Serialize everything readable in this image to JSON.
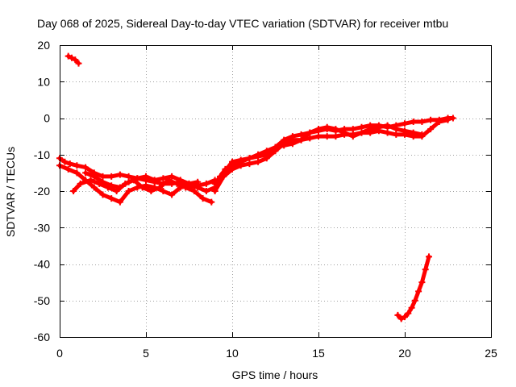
{
  "chart_data": {
    "type": "scatter",
    "title": "Day 068 of 2025, Sidereal Day-to-day VTEC variation (SDTVAR) for receiver mtbu",
    "xlabel": "GPS time / hours",
    "ylabel": "SDTVAR / TECUs",
    "xlim": [
      0,
      25
    ],
    "ylim": [
      -60,
      20
    ],
    "xticks": [
      0,
      5,
      10,
      15,
      20,
      25
    ],
    "yticks": [
      20,
      10,
      0,
      -10,
      -20,
      -30,
      -40,
      -50,
      -60
    ],
    "grid": true,
    "series_color": "#ff0000",
    "series": [
      {
        "name": "early-fragment",
        "x": [
          0.5,
          0.7,
          0.9,
          1.1
        ],
        "y": [
          17,
          16.5,
          16,
          15
        ]
      },
      {
        "name": "band-1",
        "x": [
          0,
          0.3,
          0.6,
          1,
          1.5,
          2,
          2.5,
          3,
          3.5,
          4,
          4.5,
          5,
          5.5,
          6,
          6.5,
          7,
          7.5,
          8,
          8.5,
          9
        ],
        "y": [
          -11,
          -12,
          -12.5,
          -13,
          -13.5,
          -15,
          -16,
          -16,
          -15.5,
          -16,
          -16.5,
          -17,
          -17.5,
          -18,
          -18,
          -17.5,
          -18,
          -18.5,
          -18,
          -17
        ]
      },
      {
        "name": "band-2",
        "x": [
          0,
          0.5,
          1,
          1.5,
          2,
          2.5,
          3,
          3.5,
          4,
          4.5,
          5,
          5.5,
          6,
          6.5,
          7,
          7.5,
          8,
          8.5,
          9
        ],
        "y": [
          -13,
          -14,
          -15,
          -17,
          -19,
          -21,
          -22,
          -23,
          -20,
          -19,
          -18.5,
          -19,
          -20,
          -21,
          -19,
          -18.5,
          -19,
          -20,
          -19
        ]
      },
      {
        "name": "band-3",
        "x": [
          0.8,
          1.2,
          1.8,
          2.3,
          2.8,
          3.3,
          3.8,
          4.3,
          4.8,
          5.3,
          5.8,
          6.3,
          6.8,
          7.3,
          7.8,
          8.3,
          8.8
        ],
        "y": [
          -20,
          -18,
          -17,
          -18,
          -19,
          -20,
          -18,
          -17,
          -19,
          -20,
          -19,
          -17,
          -18,
          -19,
          -20,
          -22,
          -23
        ]
      },
      {
        "name": "band-4",
        "x": [
          1.5,
          2,
          2.5,
          3,
          3.5,
          4,
          4.5,
          5,
          5.5,
          6,
          6.5,
          7,
          7.5,
          8
        ],
        "y": [
          -15,
          -16,
          -17.5,
          -18.5,
          -19,
          -17.5,
          -16.5,
          -16,
          -17,
          -16.5,
          -16,
          -17,
          -18,
          -17.5
        ]
      },
      {
        "name": "rise-1",
        "x": [
          9,
          9.3,
          9.6,
          10,
          10.5,
          11,
          11.5,
          12,
          12.5,
          13,
          13.5,
          14,
          14.5,
          15,
          15.5,
          16,
          16.5,
          17,
          17.5,
          18,
          18.5,
          19,
          19.5,
          20,
          20.5,
          21,
          21.5,
          22,
          22.5,
          22.8
        ],
        "y": [
          -18,
          -16,
          -14,
          -13,
          -12,
          -11,
          -10.5,
          -10,
          -8,
          -6,
          -5,
          -4.5,
          -4,
          -3.5,
          -3,
          -3.5,
          -3,
          -3,
          -2.5,
          -2,
          -2,
          -2.5,
          -2,
          -1.5,
          -1,
          -1,
          -0.5,
          -0.5,
          0,
          0
        ]
      },
      {
        "name": "rise-2",
        "x": [
          9,
          9.5,
          10,
          10.5,
          11,
          11.5,
          12,
          12.5,
          13,
          13.5,
          14,
          14.5,
          15,
          15.5,
          16,
          16.5,
          17,
          17.5,
          18,
          18.5,
          19,
          19.5,
          20,
          20.5,
          21,
          21.5,
          22,
          22.5
        ],
        "y": [
          -20,
          -16,
          -14,
          -13,
          -12.5,
          -12,
          -11,
          -9,
          -7,
          -6,
          -6,
          -5.5,
          -5,
          -5,
          -5,
          -4.5,
          -4.5,
          -4,
          -4,
          -3.5,
          -4,
          -4.5,
          -4.5,
          -5,
          -5,
          -3,
          -1,
          -0.5
        ]
      },
      {
        "name": "rise-3",
        "x": [
          9.5,
          10,
          10.5,
          11,
          11.5,
          12,
          12.5,
          13,
          13.5,
          14,
          14.5,
          15,
          15.5,
          16,
          16.5,
          17,
          17.5,
          18,
          18.5,
          19,
          19.5,
          20,
          20.5,
          21
        ],
        "y": [
          -15,
          -12,
          -11.5,
          -11,
          -10,
          -9,
          -8,
          -7.5,
          -7,
          -6,
          -4,
          -3,
          -2.5,
          -3,
          -4,
          -5,
          -4,
          -3,
          -2.5,
          -2,
          -3,
          -3.5,
          -4,
          -4.5
        ]
      },
      {
        "name": "late-fragment",
        "x": [
          19.6,
          19.8,
          20,
          20.2,
          20.4,
          20.6,
          20.8,
          21,
          21.2,
          21.4
        ],
        "y": [
          -54,
          -55,
          -54.5,
          -53.5,
          -52,
          -50,
          -47.5,
          -45,
          -41.5,
          -38
        ]
      }
    ]
  }
}
